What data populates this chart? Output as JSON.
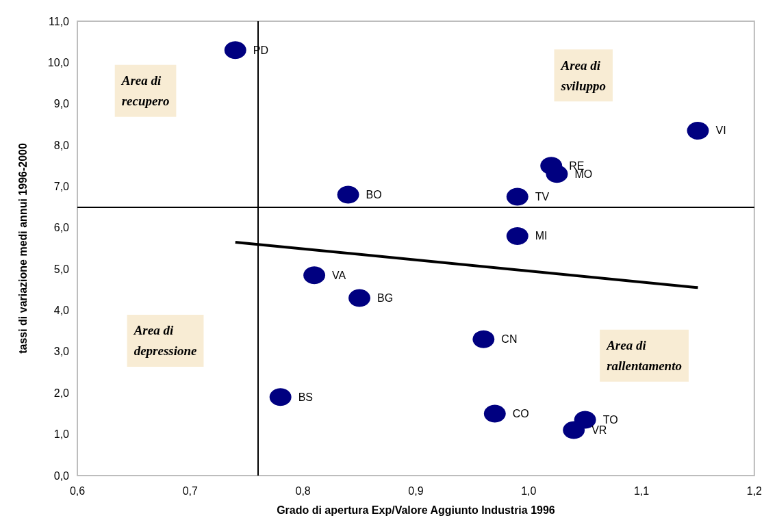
{
  "chart_data": {
    "type": "scatter",
    "xlabel": "Grado di apertura Exp/Valore Aggiunto Industria 1996",
    "ylabel": "tassi di variazione medi annui 1996-2000",
    "xlim": [
      0.6,
      1.2
    ],
    "xticks": [
      {
        "value": 0.6,
        "label": "0,6"
      },
      {
        "value": 0.7,
        "label": "0,7"
      },
      {
        "value": 0.8,
        "label": "0,8"
      },
      {
        "value": 0.9,
        "label": "0,9"
      },
      {
        "value": 1.0,
        "label": "1,0"
      },
      {
        "value": 1.1,
        "label": "1,1"
      },
      {
        "value": 1.2,
        "label": "1,2"
      }
    ],
    "ylim": [
      0,
      11
    ],
    "yticks": [
      {
        "value": 0,
        "label": "0,0"
      },
      {
        "value": 1,
        "label": "1,0"
      },
      {
        "value": 2,
        "label": "2,0"
      },
      {
        "value": 3,
        "label": "3,0"
      },
      {
        "value": 4,
        "label": "4,0"
      },
      {
        "value": 5,
        "label": "5,0"
      },
      {
        "value": 6,
        "label": "6,0"
      },
      {
        "value": 7,
        "label": "7,0"
      },
      {
        "value": 8,
        "label": "8,0"
      },
      {
        "value": 9,
        "label": "9,0"
      },
      {
        "value": 10,
        "label": "10,0"
      },
      {
        "value": 11,
        "label": "11,0"
      }
    ],
    "grid": false,
    "legend": false,
    "marker": "circle",
    "series": [
      {
        "name": "PD",
        "color": "#000080",
        "x": [
          0.74
        ],
        "values": [
          10.3
        ]
      },
      {
        "name": "BO",
        "color": "#000080",
        "x": [
          0.84
        ],
        "values": [
          6.8
        ]
      },
      {
        "name": "VA",
        "color": "#000080",
        "x": [
          0.81
        ],
        "values": [
          4.85
        ]
      },
      {
        "name": "BG",
        "color": "#000080",
        "x": [
          0.85
        ],
        "values": [
          4.3
        ]
      },
      {
        "name": "BS",
        "color": "#000080",
        "x": [
          0.78
        ],
        "values": [
          1.9
        ]
      },
      {
        "name": "VI",
        "color": "#000080",
        "x": [
          1.15
        ],
        "values": [
          8.35
        ]
      },
      {
        "name": "RE",
        "color": "#000080",
        "x": [
          1.02
        ],
        "values": [
          7.5
        ]
      },
      {
        "name": "MO",
        "color": "#000080",
        "x": [
          1.025
        ],
        "values": [
          7.3
        ]
      },
      {
        "name": "TV",
        "color": "#000080",
        "x": [
          0.99
        ],
        "values": [
          6.75
        ]
      },
      {
        "name": "MI",
        "color": "#000080",
        "x": [
          0.99
        ],
        "values": [
          5.8
        ]
      },
      {
        "name": "CN",
        "color": "#000080",
        "x": [
          0.96
        ],
        "values": [
          3.3
        ]
      },
      {
        "name": "CO",
        "color": "#000080",
        "x": [
          0.97
        ],
        "values": [
          1.5
        ]
      },
      {
        "name": "TO",
        "color": "#000080",
        "x": [
          1.05
        ],
        "values": [
          1.35
        ]
      },
      {
        "name": "VR",
        "color": "#000080",
        "x": [
          1.04
        ],
        "values": [
          1.1
        ]
      },
      {
        "type": "line",
        "color": "#000000",
        "x": [
          0.74,
          1.15
        ],
        "values": [
          5.65,
          4.55
        ],
        "marker": "none",
        "line_style": "solid"
      }
    ],
    "ref_lines": [
      {
        "axis": "y",
        "value": 6.5,
        "color": "#000000"
      },
      {
        "axis": "x",
        "value": 0.76,
        "color": "#000000"
      }
    ],
    "annotations": [
      "Area di\nrecupero",
      "Area di\nsviluppo",
      "Area di\ndepressione",
      "Area di\nrallentamento"
    ]
  }
}
